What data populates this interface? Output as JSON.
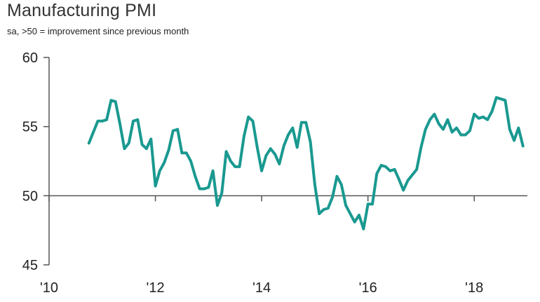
{
  "chart_data": {
    "type": "line",
    "title": "Manufacturing PMI",
    "subtitle": "sa, >50 = improvement since previous month",
    "xlabel": "",
    "ylabel": "",
    "ylim": [
      45,
      60
    ],
    "yticks": [
      45,
      50,
      55,
      60
    ],
    "xlim": [
      2010.0,
      2019.0
    ],
    "xticks": [
      {
        "value": 2010,
        "label": "'10"
      },
      {
        "value": 2012,
        "label": "'12"
      },
      {
        "value": 2014,
        "label": "'14"
      },
      {
        "value": 2016,
        "label": "'16"
      },
      {
        "value": 2018,
        "label": "'18"
      }
    ],
    "reference_line": 50,
    "grid": false,
    "line_color": "#1a9990",
    "axis_color": "#555555",
    "series": [
      {
        "name": "Manufacturing PMI",
        "x": [
          2010.75,
          2010.833,
          2010.917,
          2011.0,
          2011.083,
          2011.167,
          2011.25,
          2011.333,
          2011.417,
          2011.5,
          2011.583,
          2011.667,
          2011.75,
          2011.833,
          2011.917,
          2012.0,
          2012.083,
          2012.167,
          2012.25,
          2012.333,
          2012.417,
          2012.5,
          2012.583,
          2012.667,
          2012.75,
          2012.833,
          2012.917,
          2013.0,
          2013.083,
          2013.167,
          2013.25,
          2013.333,
          2013.417,
          2013.5,
          2013.583,
          2013.667,
          2013.75,
          2013.833,
          2013.917,
          2014.0,
          2014.083,
          2014.167,
          2014.25,
          2014.333,
          2014.417,
          2014.5,
          2014.583,
          2014.667,
          2014.75,
          2014.833,
          2014.917,
          2015.0,
          2015.083,
          2015.167,
          2015.25,
          2015.333,
          2015.417,
          2015.5,
          2015.583,
          2015.667,
          2015.75,
          2015.833,
          2015.917,
          2016.0,
          2016.083,
          2016.167,
          2016.25,
          2016.333,
          2016.417,
          2016.5,
          2016.583,
          2016.667,
          2016.75,
          2016.833,
          2016.917,
          2017.0,
          2017.083,
          2017.167,
          2017.25,
          2017.333,
          2017.417,
          2017.5,
          2017.583,
          2017.667,
          2017.75,
          2017.833,
          2017.917,
          2018.0,
          2018.083,
          2018.167,
          2018.25,
          2018.333,
          2018.417,
          2018.5,
          2018.583,
          2018.667,
          2018.75,
          2018.833,
          2018.917
        ],
        "values": [
          53.8,
          54.6,
          55.4,
          55.4,
          55.5,
          56.9,
          56.8,
          55.2,
          53.4,
          53.8,
          55.4,
          55.5,
          53.7,
          53.4,
          54.1,
          50.7,
          51.8,
          52.4,
          53.3,
          54.7,
          54.8,
          53.1,
          53.1,
          52.5,
          51.4,
          50.5,
          50.5,
          50.6,
          51.8,
          49.3,
          50.2,
          53.2,
          52.5,
          52.1,
          52.1,
          54.3,
          55.7,
          55.4,
          53.5,
          51.8,
          52.9,
          53.4,
          53.0,
          52.3,
          53.6,
          54.4,
          54.9,
          53.5,
          55.3,
          55.3,
          53.9,
          50.8,
          48.7,
          49.0,
          49.1,
          49.9,
          51.4,
          50.8,
          49.3,
          48.7,
          48.1,
          48.6,
          47.6,
          49.4,
          49.4,
          51.6,
          52.2,
          52.1,
          51.8,
          51.9,
          51.2,
          50.4,
          51.1,
          51.5,
          51.9,
          53.5,
          54.8,
          55.5,
          55.9,
          55.2,
          54.8,
          55.5,
          54.6,
          54.9,
          54.4,
          54.4,
          54.7,
          55.9,
          55.6,
          55.7,
          55.5,
          56.1,
          57.1,
          57.0,
          56.9,
          54.8,
          54.0,
          54.9,
          53.6
        ]
      }
    ]
  }
}
